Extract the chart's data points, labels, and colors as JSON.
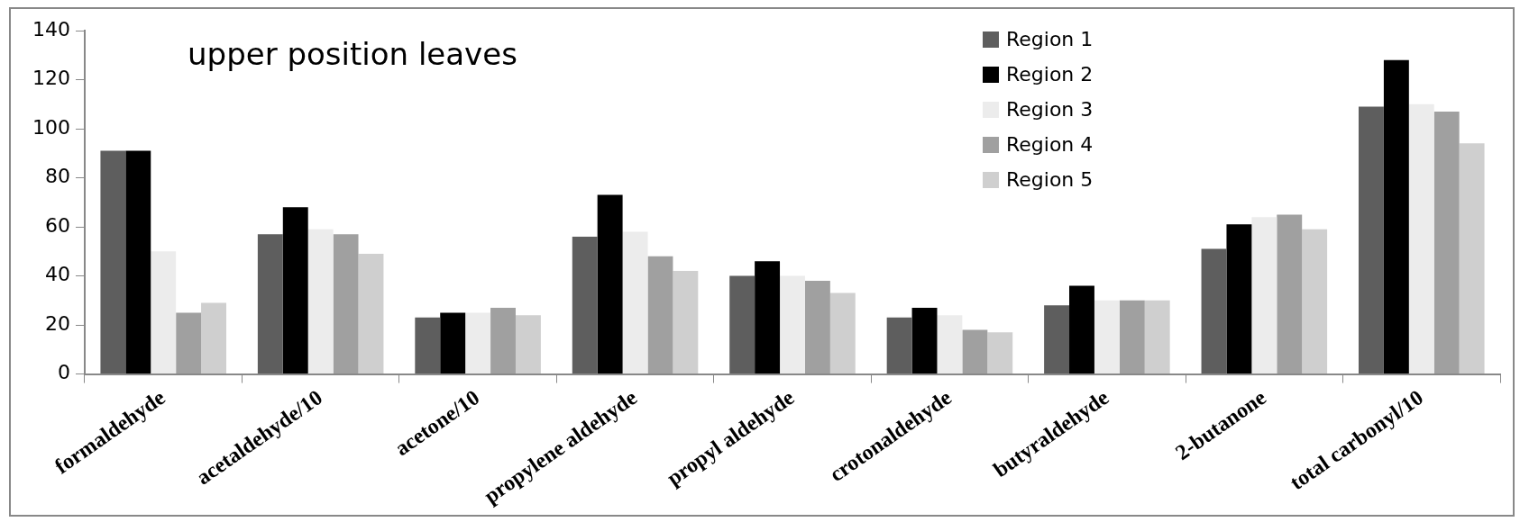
{
  "chart_data": {
    "type": "bar",
    "categories": [
      "formaldehyde",
      "acetaldehyde/10",
      "acetone/10",
      "propylene aldehyde",
      "propyl aldehyde",
      "crotonaldehyde",
      "butyraldehyde",
      "2-butanone",
      "total carbonyl/10"
    ],
    "series": [
      {
        "name": "Region 1",
        "color": "#5e5e5e",
        "values": [
          91,
          57,
          23,
          56,
          40,
          23,
          28,
          51,
          109
        ]
      },
      {
        "name": "Region 2",
        "color": "#000000",
        "values": [
          91,
          68,
          25,
          73,
          46,
          27,
          36,
          61,
          128
        ]
      },
      {
        "name": "Region 3",
        "color": "#ececec",
        "values": [
          50,
          59,
          25,
          58,
          40,
          24,
          30,
          64,
          110
        ]
      },
      {
        "name": "Region 4",
        "color": "#a0a0a0",
        "values": [
          25,
          57,
          27,
          48,
          38,
          18,
          30,
          65,
          107
        ]
      },
      {
        "name": "Region 5",
        "color": "#cfcfcf",
        "values": [
          29,
          49,
          24,
          42,
          33,
          17,
          30,
          59,
          94
        ]
      }
    ],
    "ylim": [
      0,
      140
    ],
    "yticks": [
      0,
      20,
      40,
      60,
      80,
      100,
      120,
      140
    ],
    "grid": false,
    "legend": "top right",
    "annotations": [
      "upper position leaves"
    ]
  }
}
